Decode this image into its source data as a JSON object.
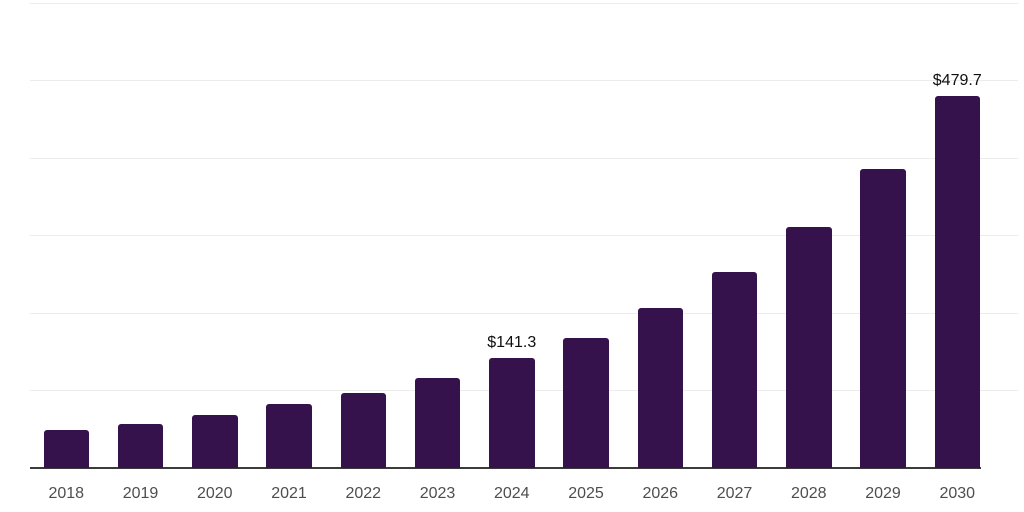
{
  "chart_data": {
    "type": "bar",
    "title": "",
    "xlabel": "",
    "ylabel": "",
    "categories": [
      "2018",
      "2019",
      "2020",
      "2021",
      "2022",
      "2023",
      "2024",
      "2025",
      "2026",
      "2027",
      "2028",
      "2029",
      "2030"
    ],
    "values": [
      48.5,
      57.0,
      68.0,
      82.0,
      97.0,
      116.0,
      141.3,
      168.0,
      206.0,
      253.0,
      311.0,
      386.0,
      479.7
    ],
    "value_unit_prefix": "$",
    "annotations": [
      {
        "category": "2024",
        "text": "$141.3"
      },
      {
        "category": "2030",
        "text": "$479.7"
      }
    ],
    "ylim": [
      0,
      600
    ],
    "gridline_step": 100,
    "grid": "horizontal gridlines only, no y-axis tick labels",
    "legend": "none",
    "colors": {
      "bar": "#35124B",
      "axis_line": "#3b3b3b",
      "gridline": "#ececec",
      "tick_label": "#4e4e4e",
      "annotation_text": "#0f0f0f",
      "background": "#ffffff"
    }
  }
}
